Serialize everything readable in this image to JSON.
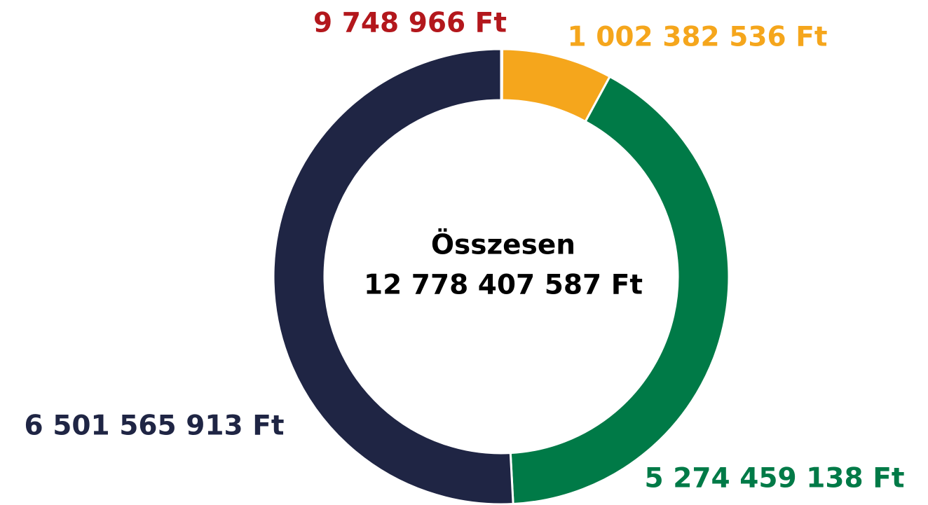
{
  "chart_data": {
    "type": "donut",
    "center_label": "Összesen",
    "total": {
      "value": 12778407587,
      "label": "12 778 407 587 Ft"
    },
    "categories": [
      null,
      null,
      null,
      null
    ],
    "values": [
      9748966,
      1002382536,
      5274459138,
      6501565913
    ],
    "value_labels": [
      "9 748 966 Ft",
      "1 002 382 536 Ft",
      "5 274 459 138 Ft",
      "6 501 565 913 Ft"
    ],
    "colors": [
      "#b3171c",
      "#f5a61c",
      "#007a47",
      "#1f2544"
    ]
  }
}
